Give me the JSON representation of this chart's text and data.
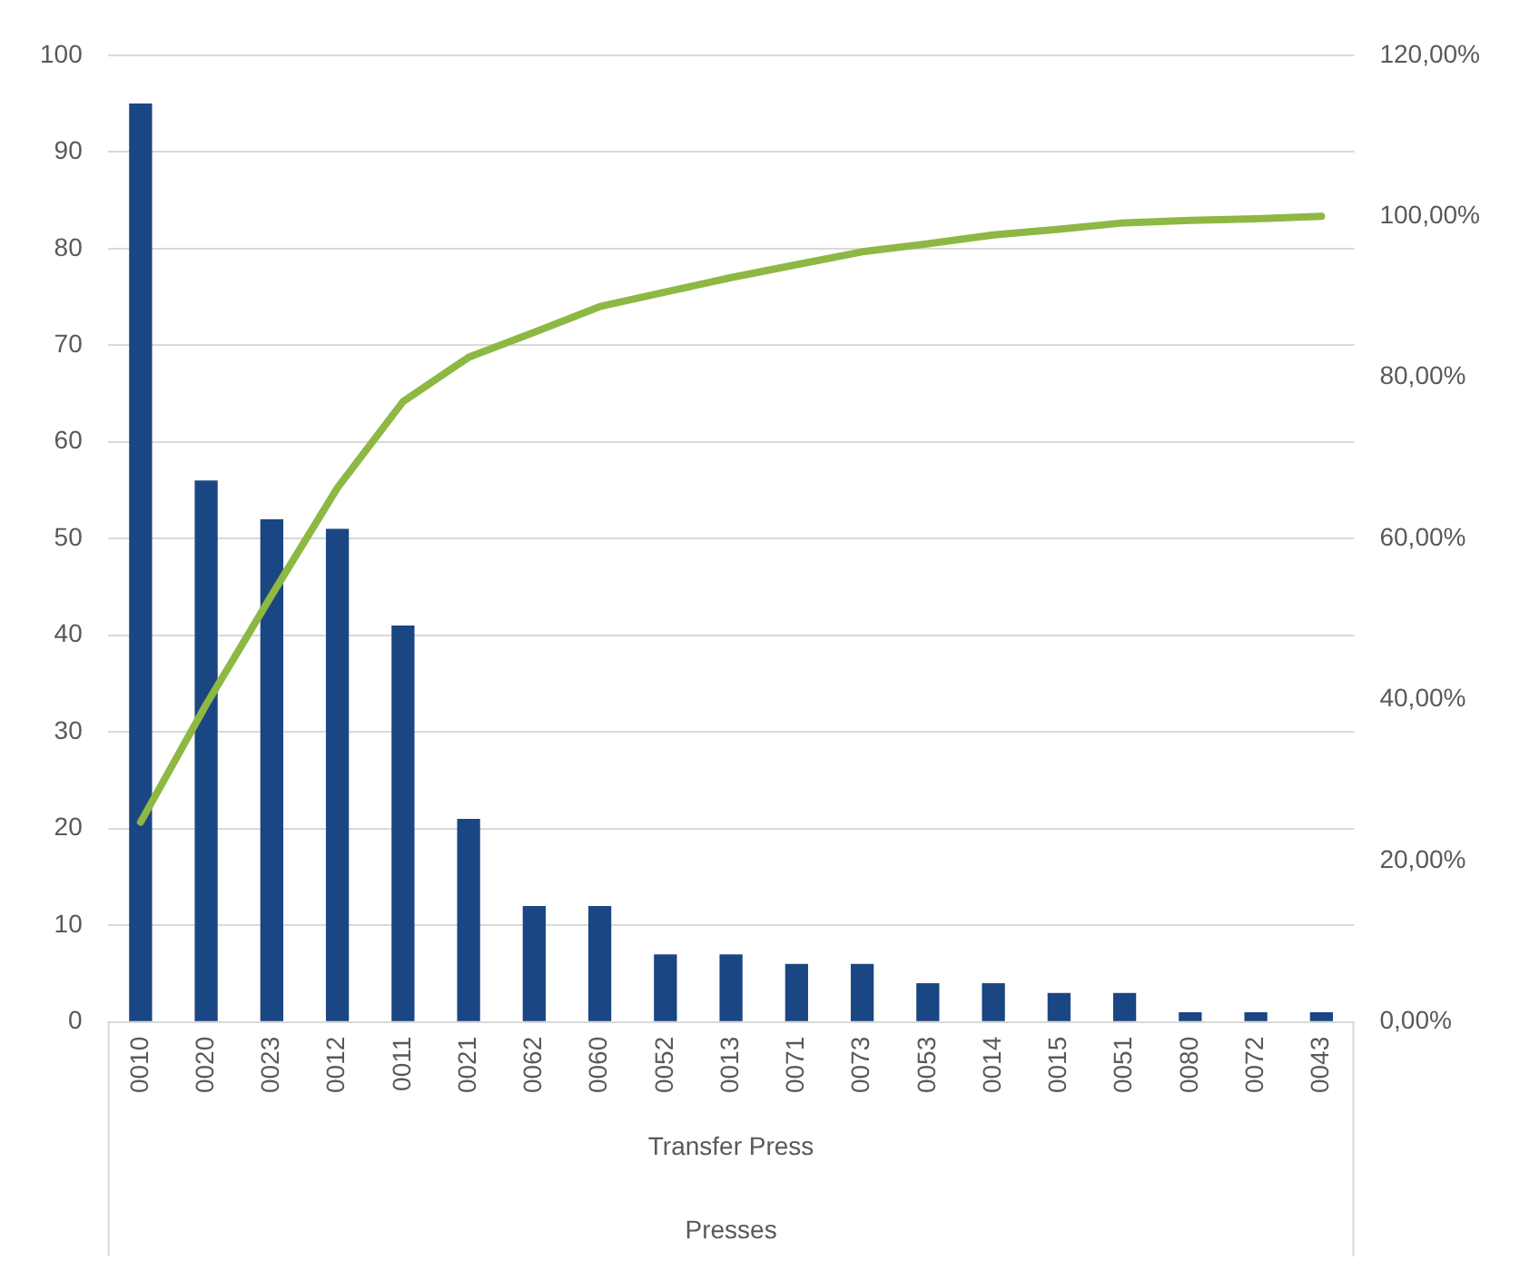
{
  "chart_data": {
    "type": "bar",
    "xlabel": "Presses",
    "annotations": [
      "Transfer Press"
    ],
    "categories": [
      "0010",
      "0020",
      "0023",
      "0012",
      "0011",
      "0021",
      "0062",
      "0060",
      "0052",
      "0013",
      "0071",
      "0073",
      "0053",
      "0014",
      "0015",
      "0051",
      "0080",
      "0072",
      "0043"
    ],
    "series": [
      {
        "color": "#1a4683",
        "values": [
          95,
          56,
          52,
          51,
          41,
          21,
          12,
          12,
          7,
          7,
          6,
          6,
          4,
          4,
          3,
          3,
          1,
          1,
          1
        ]
      },
      {
        "type": "line",
        "axis": "y2",
        "color": "#8db843",
        "marker": "none",
        "line_style": "solid",
        "values": [
          24.8,
          39.4,
          53.0,
          66.3,
          77.0,
          82.5,
          85.6,
          88.8,
          90.6,
          92.4,
          94.0,
          95.6,
          96.6,
          97.7,
          98.4,
          99.2,
          99.5,
          99.7,
          100
        ]
      }
    ],
    "ylim": [
      0,
      100
    ],
    "yticks": [
      0,
      10,
      20,
      30,
      40,
      50,
      60,
      70,
      80,
      90,
      100
    ],
    "y2lim": [
      0,
      120
    ],
    "y2ticks": [
      {
        "value": 0,
        "label": "0,00%"
      },
      {
        "value": 20,
        "label": "20,00%"
      },
      {
        "value": 40,
        "label": "40,00%"
      },
      {
        "value": 60,
        "label": "60,00%"
      },
      {
        "value": 80,
        "label": "80,00%"
      },
      {
        "value": 100,
        "label": "100,00%"
      },
      {
        "value": 120,
        "label": "120,00%"
      }
    ],
    "grid": "y",
    "legend": false
  }
}
